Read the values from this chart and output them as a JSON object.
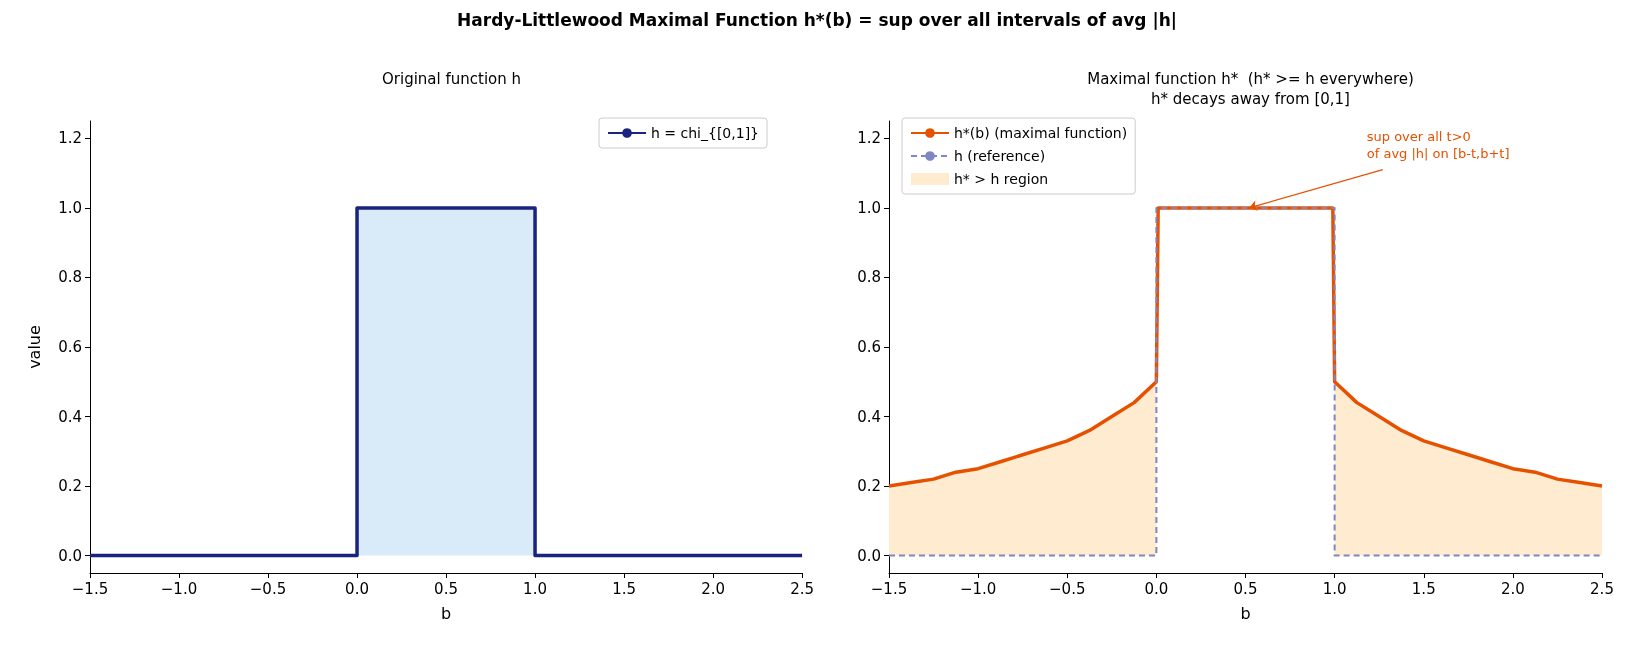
{
  "chart_data": [
    {
      "type": "line",
      "title": "Original function h",
      "xlabel": "b",
      "ylabel": "value",
      "annotations": [
        "Hardy-Littlewood Maximal Function  h*(b) = sup over all intervals of avg |h|"
      ],
      "xlim": [
        -1.5,
        2.5
      ],
      "ylim": [
        -0.05,
        1.25
      ],
      "xticks": [
        {
          "value": -1.5,
          "label": "−1.5"
        },
        {
          "value": -1,
          "label": "−1.0"
        },
        {
          "value": -0.5,
          "label": "−0.5"
        },
        {
          "value": 0,
          "label": "0.0"
        },
        {
          "value": 0.5,
          "label": "0.5"
        },
        {
          "value": 1,
          "label": "1.0"
        },
        {
          "value": 1.5,
          "label": "1.5"
        },
        {
          "value": 2,
          "label": "2.0"
        },
        {
          "value": 2.5,
          "label": "2.5"
        }
      ],
      "yticks": [
        {
          "value": 0,
          "label": "0.0"
        },
        {
          "value": 0.2,
          "label": "0.2"
        },
        {
          "value": 0.4,
          "label": "0.4"
        },
        {
          "value": 0.6,
          "label": "0.6"
        },
        {
          "value": 0.8,
          "label": "0.8"
        },
        {
          "value": 1,
          "label": "1.0"
        },
        {
          "value": 1.2,
          "label": "1.2"
        }
      ],
      "grid": false,
      "legend": "top right",
      "marker": "none",
      "series": [
        {
          "type": "area",
          "color": "#d9eaf8",
          "x": [
            0,
            0,
            1,
            1
          ],
          "values": [
            0,
            1,
            1,
            0
          ]
        },
        {
          "name": "h = chi_{[0,1]}",
          "color": "#1a237e",
          "x": [
            -1.5,
            0,
            0,
            1,
            1,
            2.5
          ],
          "values": [
            0,
            0,
            1,
            1,
            0,
            0
          ]
        }
      ]
    },
    {
      "type": "line",
      "title": "Maximal function h*  (h* >= h everywhere)\nh* decays away from [0,1]",
      "xlabel": "b",
      "annotations": [
        {
          "text": "sup over all t>0\nof avg |h| on [b-t,b+t]",
          "x": 0.52,
          "y": 1.0
        }
      ],
      "xlim": [
        -1.5,
        2.5
      ],
      "ylim": [
        -0.05,
        1.25
      ],
      "xticks": [
        {
          "value": -1.5,
          "label": "−1.5"
        },
        {
          "value": -1,
          "label": "−1.0"
        },
        {
          "value": -0.5,
          "label": "−0.5"
        },
        {
          "value": 0,
          "label": "0.0"
        },
        {
          "value": 0.5,
          "label": "0.5"
        },
        {
          "value": 1,
          "label": "1.0"
        },
        {
          "value": 1.5,
          "label": "1.5"
        },
        {
          "value": 2,
          "label": "2.0"
        },
        {
          "value": 2.5,
          "label": "2.5"
        }
      ],
      "yticks": [
        {
          "value": 0,
          "label": "0.0"
        },
        {
          "value": 0.2,
          "label": "0.2"
        },
        {
          "value": 0.4,
          "label": "0.4"
        },
        {
          "value": 0.6,
          "label": "0.6"
        },
        {
          "value": 0.8,
          "label": "0.8"
        },
        {
          "value": 1,
          "label": "1.0"
        },
        {
          "value": 1.2,
          "label": "1.2"
        }
      ],
      "grid": false,
      "legend": "top left",
      "marker": "none",
      "series": [
        {
          "name": "h*(b) (maximal function)",
          "color": "#e65100",
          "x": [
            -1.5,
            -1.375,
            -1.25,
            -1.125,
            -1,
            -0.875,
            -0.75,
            -0.625,
            -0.5,
            -0.375,
            -0.25,
            -0.125,
            0,
            0.01,
            0.99,
            1,
            1.125,
            1.25,
            1.375,
            1.5,
            1.625,
            1.75,
            1.875,
            2,
            2.125,
            2.25,
            2.375,
            2.5
          ],
          "values": [
            0.2,
            0.21,
            0.22,
            0.24,
            0.25,
            0.27,
            0.29,
            0.31,
            0.33,
            0.36,
            0.4,
            0.44,
            0.5,
            1,
            1,
            0.5,
            0.44,
            0.4,
            0.36,
            0.33,
            0.31,
            0.29,
            0.27,
            0.25,
            0.24,
            0.22,
            0.21,
            0.2
          ]
        },
        {
          "name": "h (reference)",
          "color": "#7f86c4",
          "line_style": "dashed",
          "x": [
            -1.5,
            0,
            0,
            1,
            1,
            2.5
          ],
          "values": [
            0,
            0,
            1,
            1,
            0,
            0
          ]
        },
        {
          "name": "h* > h region",
          "type": "area",
          "color": "#ffebcf",
          "x": [
            -1.5,
            -1.375,
            -1.25,
            -1.125,
            -1,
            -0.875,
            -0.75,
            -0.625,
            -0.5,
            -0.375,
            -0.25,
            -0.125,
            0,
            0.5,
            1,
            1.125,
            1.25,
            1.375,
            1.5,
            1.625,
            1.75,
            1.875,
            2,
            2.125,
            2.25,
            2.375,
            2.5
          ],
          "values": [
            0.2,
            0.21,
            0.22,
            0.24,
            0.25,
            0.27,
            0.29,
            0.31,
            0.33,
            0.36,
            0.4,
            0.44,
            0.5,
            null,
            0.5,
            0.44,
            0.4,
            0.36,
            0.33,
            0.31,
            0.29,
            0.27,
            0.25,
            0.24,
            0.22,
            0.21,
            0.2
          ]
        }
      ]
    }
  ]
}
